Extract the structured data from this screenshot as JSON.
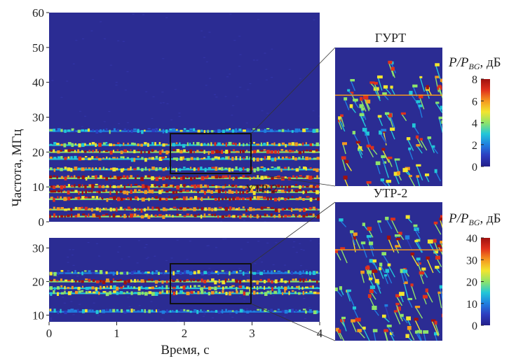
{
  "chart_data": [
    {
      "type": "heatmap",
      "xlabel": "Время, с",
      "ylabel": "Частота, МГц",
      "xlim": [
        0,
        4
      ],
      "ylim": [
        0,
        60
      ],
      "xticks": [
        "0",
        "1",
        "2",
        "3",
        "4"
      ],
      "yticks": [
        "0",
        "10",
        "20",
        "30",
        "40",
        "50",
        "60"
      ],
      "annotation": "УТР-2",
      "zoom_box": {
        "t": [
          1.8,
          3.0
        ],
        "f": [
          15,
          25
        ]
      },
      "bands": [
        {
          "f": 18,
          "level": "medium"
        },
        {
          "f": 20,
          "level": "high"
        },
        {
          "f": 22,
          "level": "medium"
        },
        {
          "f": 26,
          "level": "low"
        },
        {
          "f": 15,
          "level": "medium"
        },
        {
          "f": 12.5,
          "level": "high"
        },
        {
          "f": 10,
          "level": "high"
        },
        {
          "f": 8.5,
          "level": "high"
        },
        {
          "f": 6.5,
          "level": "high"
        },
        {
          "f": 3.5,
          "level": "high"
        },
        {
          "f": 1.5,
          "level": "high"
        }
      ]
    },
    {
      "type": "heatmap",
      "xlim": [
        0,
        4
      ],
      "ylim": [
        8,
        33
      ],
      "xticks": [
        "0",
        "1",
        "2",
        "3",
        "4"
      ],
      "yticks": [
        "10",
        "20",
        "30"
      ],
      "zoom_box": {
        "t": [
          1.8,
          3.0
        ],
        "f": [
          15,
          25
        ]
      },
      "bands": [
        {
          "f": 20,
          "level": "high"
        },
        {
          "f": 18,
          "level": "medium"
        },
        {
          "f": 16.5,
          "level": "medium"
        },
        {
          "f": 22.5,
          "level": "low"
        },
        {
          "f": 11,
          "level": "low"
        }
      ]
    },
    {
      "type": "heatmap",
      "title": "ГУРТ",
      "colorbar": {
        "label_main": "P/P",
        "label_sub": "BG",
        "unit": ", дБ",
        "range": [
          0,
          8
        ],
        "ticks": [
          "0",
          "2",
          "4",
          "6",
          "8"
        ]
      }
    },
    {
      "type": "heatmap",
      "title": "УТР-2",
      "colorbar": {
        "label_main": "P/P",
        "label_sub": "BG",
        "unit": ", дБ",
        "range": [
          0,
          40
        ],
        "ticks": [
          "0",
          "10",
          "20",
          "30",
          "40"
        ]
      }
    }
  ],
  "colors": {
    "background": "#2b2c93",
    "noise": "#3234a6",
    "colormap": [
      "#241f8a",
      "#2d3dbf",
      "#1f7fe0",
      "#22c7d8",
      "#8ee36a",
      "#f2e52e",
      "#f5981f",
      "#e0311c",
      "#a0110f"
    ]
  }
}
